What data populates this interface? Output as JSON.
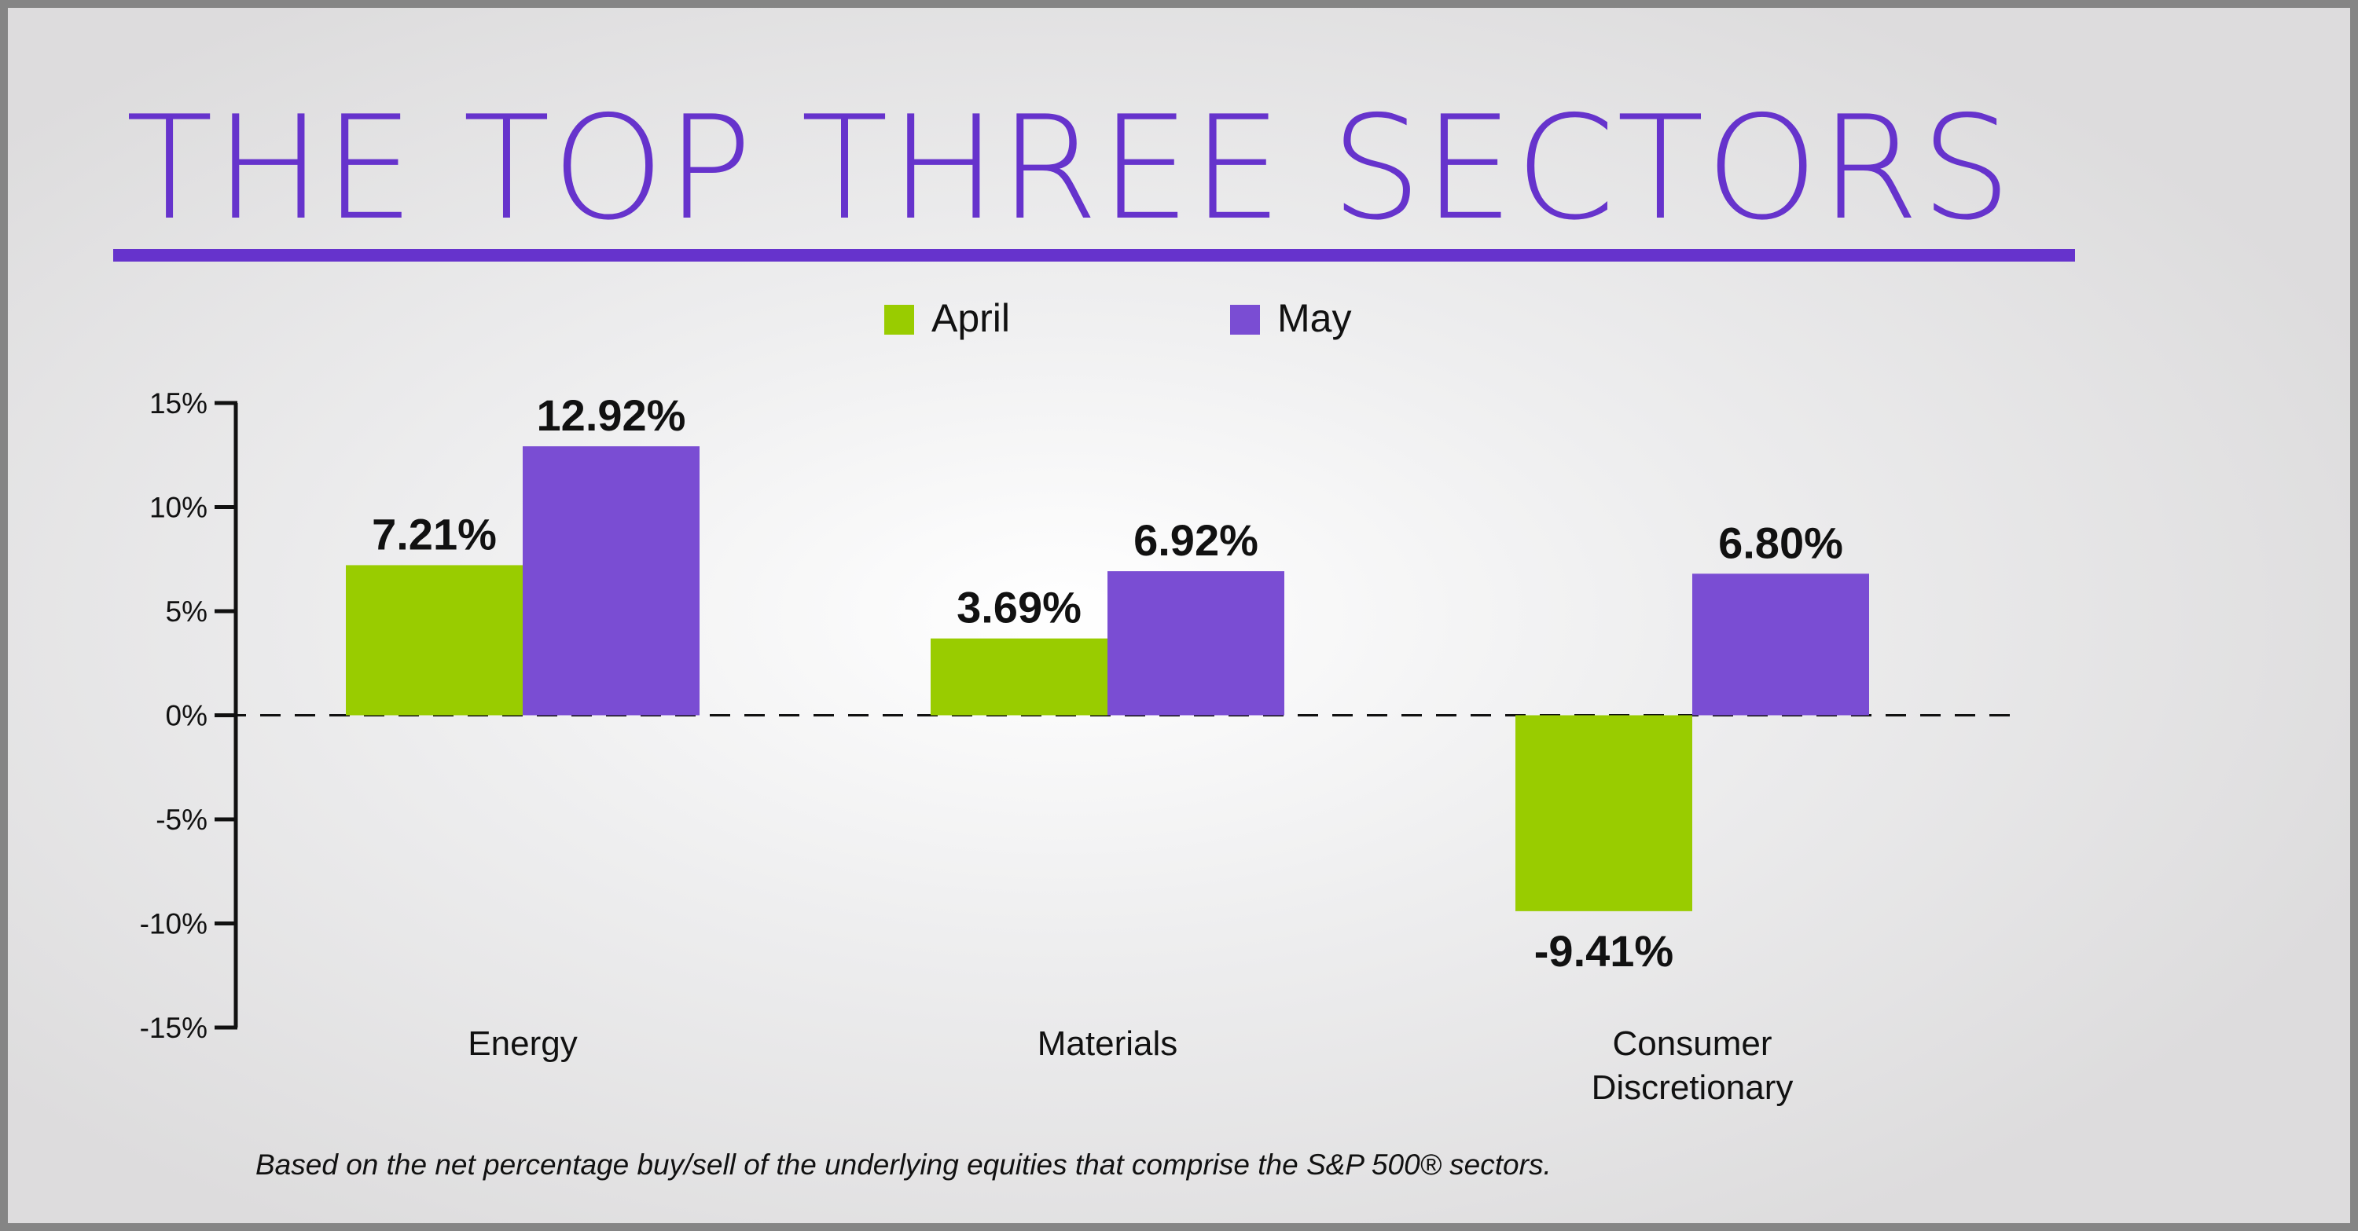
{
  "colors": {
    "title": "#6633cc",
    "april": "#99cc00",
    "may": "#7a4dd3",
    "text": "#111111"
  },
  "chart_data": {
    "type": "bar",
    "title": "THE TOP THREE SECTORS",
    "categories": [
      "Energy",
      "Materials",
      "Consumer Discretionary"
    ],
    "category_lines": [
      [
        "Energy"
      ],
      [
        "Materials"
      ],
      [
        "Consumer",
        "Discretionary"
      ]
    ],
    "series": [
      {
        "name": "April",
        "values": [
          7.21,
          3.69,
          -9.41
        ],
        "labels": [
          "7.21%",
          "3.69%",
          "-9.41%"
        ]
      },
      {
        "name": "May",
        "values": [
          12.92,
          6.92,
          6.8
        ],
        "labels": [
          "12.92%",
          "6.92%",
          "6.80%"
        ]
      }
    ],
    "ylim": [
      -15,
      15
    ],
    "yticks": [
      15,
      10,
      5,
      0,
      -5,
      -10,
      -15
    ],
    "ytick_labels": [
      "15%",
      "10%",
      "5%",
      "0%",
      "-5%",
      "-10%",
      "-15%"
    ],
    "legend": "top-center",
    "grid": false,
    "zero_line": "dashed",
    "footnote": "Based on the net percentage buy/sell of the underlying equities that comprise the S&P 500® sectors."
  }
}
